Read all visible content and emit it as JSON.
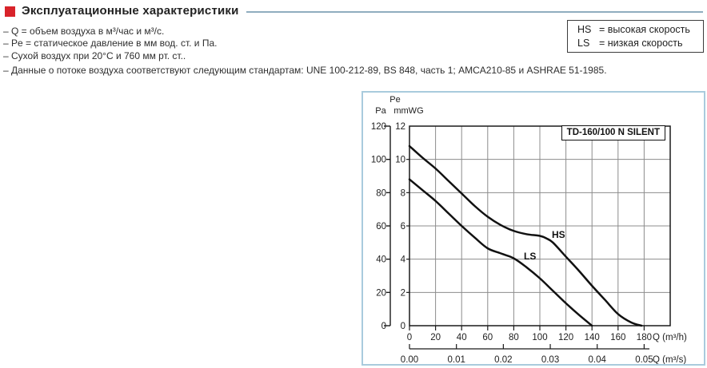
{
  "header": {
    "title": "Эксплуатационные характеристики",
    "bullet_color": "#d8232a",
    "rule_color": "#8fadbf"
  },
  "notes": [
    "– Q = объем воздуха в м³/час и м³/с.",
    "– Pe = статическое давление в мм вод. ст. и Па.",
    "– Сухой воздух при 20°C и 760 мм рт. ст..",
    "– Данные о потоке воздуха соответствуют следующим стандартам: UNE 100-212-89, BS 848, часть 1; AMCA210-85 и ASHRAE 51-1985."
  ],
  "legend": {
    "rows": [
      {
        "code": "HS",
        "desc": "= высокая скорость"
      },
      {
        "code": "LS",
        "desc": "= низкая скорость"
      }
    ]
  },
  "chart_data": {
    "type": "line",
    "title": "TD-160/100 N SILENT",
    "pressure_symbol": "Pe",
    "y_axis_left": {
      "label": "Pa",
      "ticks": [
        120,
        100,
        80,
        60,
        40,
        20,
        0
      ],
      "range": [
        0,
        120
      ]
    },
    "y_axis_inner": {
      "label": "mmWG",
      "ticks": [
        12,
        10,
        8,
        6,
        4,
        2,
        0
      ],
      "range": [
        0,
        12
      ]
    },
    "x_axis": {
      "label": "Q (m³/h)",
      "ticks": [
        0,
        20,
        40,
        60,
        80,
        100,
        120,
        140,
        160,
        180
      ],
      "range": [
        0,
        200
      ]
    },
    "x_axis_secondary": {
      "label": "Q (m³/s)",
      "ticks": [
        "0.00",
        "0.01",
        "0.02",
        "0.03",
        "0.04",
        "0.05"
      ]
    },
    "grid": true,
    "legend_position": "none",
    "series": [
      {
        "name": "HS",
        "points_mmWG": [
          [
            0,
            10.8
          ],
          [
            10,
            10.1
          ],
          [
            20,
            9.45
          ],
          [
            30,
            8.7
          ],
          [
            40,
            7.95
          ],
          [
            50,
            7.2
          ],
          [
            60,
            6.55
          ],
          [
            70,
            6.05
          ],
          [
            80,
            5.7
          ],
          [
            90,
            5.5
          ],
          [
            100,
            5.4
          ],
          [
            105,
            5.25
          ],
          [
            110,
            5.0
          ],
          [
            120,
            4.15
          ],
          [
            130,
            3.3
          ],
          [
            140,
            2.4
          ],
          [
            150,
            1.55
          ],
          [
            160,
            0.7
          ],
          [
            170,
            0.2
          ],
          [
            178,
            0
          ]
        ]
      },
      {
        "name": "LS",
        "points_mmWG": [
          [
            0,
            8.8
          ],
          [
            10,
            8.15
          ],
          [
            20,
            7.5
          ],
          [
            30,
            6.75
          ],
          [
            40,
            6.0
          ],
          [
            50,
            5.3
          ],
          [
            60,
            4.65
          ],
          [
            70,
            4.35
          ],
          [
            80,
            4.05
          ],
          [
            90,
            3.5
          ],
          [
            100,
            2.85
          ],
          [
            110,
            2.1
          ],
          [
            120,
            1.35
          ],
          [
            130,
            0.65
          ],
          [
            140,
            0
          ]
        ]
      }
    ],
    "colors": {
      "border": "#a9cbdd",
      "grid": "#8c8c8c",
      "frame": "#1a1a1a",
      "curve": "#111111"
    }
  }
}
